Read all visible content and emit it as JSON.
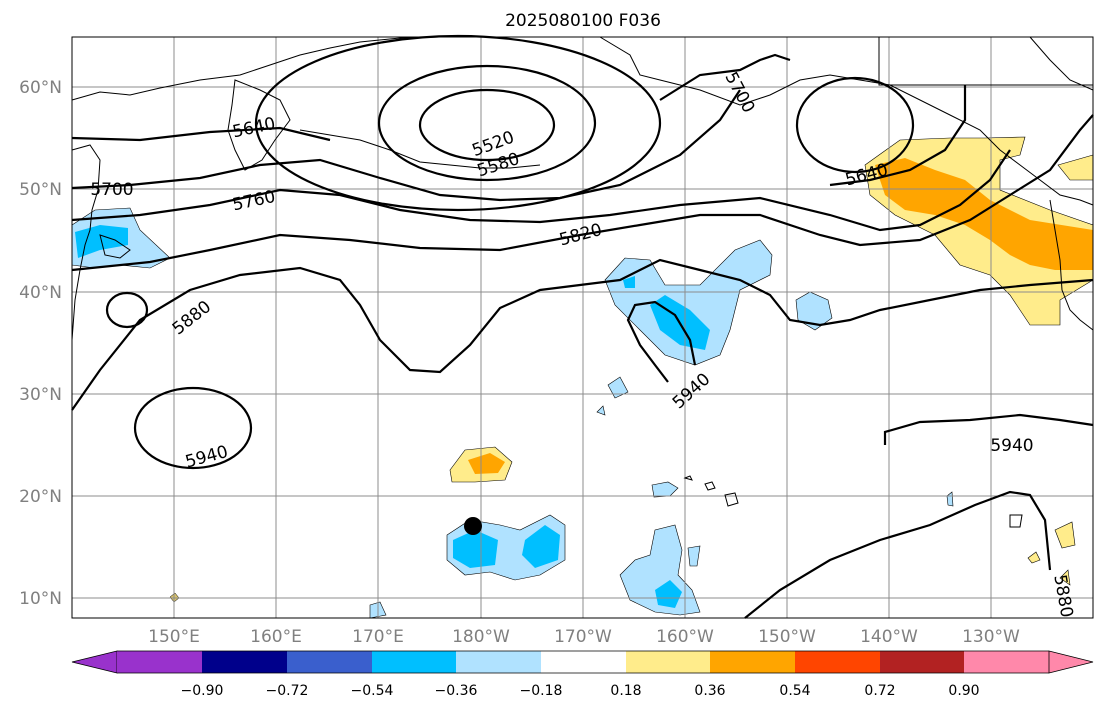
{
  "title": "2025080100 F036",
  "lat_labels": [
    "60°N",
    "50°N",
    "40°N",
    "30°N",
    "20°N",
    "10°N"
  ],
  "lon_labels": [
    "150°E",
    "160°E",
    "170°E",
    "180°W",
    "170°W",
    "160°W",
    "150°W",
    "140°W",
    "130°W"
  ],
  "contour_labels": [
    "5520",
    "5580",
    "5640",
    "5700",
    "5760",
    "5820",
    "5880",
    "5940",
    "5940",
    "5940",
    "5640",
    "5700",
    "5880"
  ],
  "colorbar": {
    "ticks": [
      "−0.90",
      "−0.72",
      "−0.54",
      "−0.36",
      "−0.18",
      "0.18",
      "0.36",
      "0.54",
      "0.72",
      "0.90"
    ],
    "colors": [
      "#9932cc",
      "#00008b",
      "#3a5fcd",
      "#00bfff",
      "#b0e2ff",
      "#ffffff",
      "#ffec8b",
      "#ffa500",
      "#ff4500",
      "#b22222",
      "#ff88aa"
    ]
  },
  "marker": "black-dot"
}
